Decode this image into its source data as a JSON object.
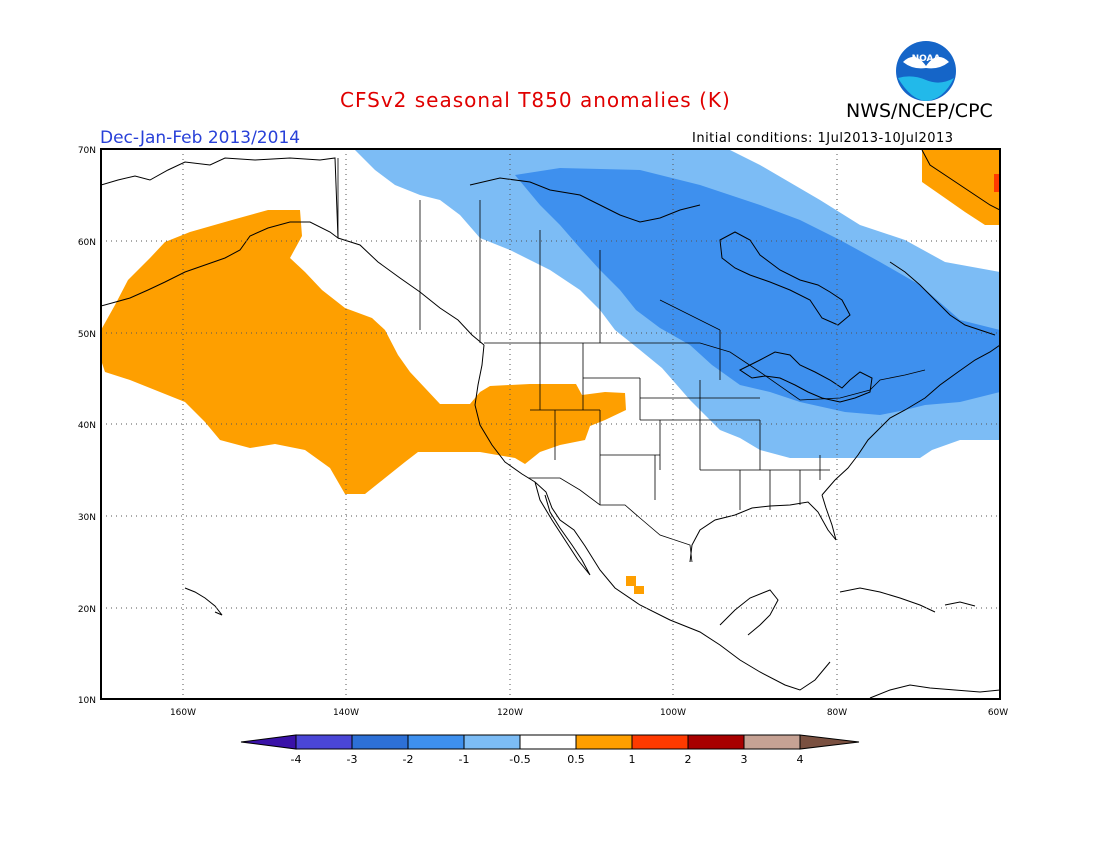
{
  "header": {
    "title": "CFSv2 seasonal T850 anomalies (K)",
    "agency": "NWS/NCEP/CPC",
    "season": "Dec-Jan-Feb 2013/2014",
    "init": "Initial conditions: 1Jul2013-10Jul2013",
    "logo_text": "NOAA"
  },
  "axes": {
    "lat_labels": [
      "70N",
      "60N",
      "50N",
      "40N",
      "30N",
      "20N",
      "10N"
    ],
    "lon_labels": [
      "160W",
      "140W",
      "120W",
      "100W",
      "80W",
      "60W"
    ],
    "lat_range": [
      10,
      70
    ],
    "lon_range": [
      -170,
      -60
    ]
  },
  "colorbar": {
    "labels": [
      "-4",
      "-3",
      "-2",
      "-1",
      "-0.5",
      "0.5",
      "1",
      "2",
      "3",
      "4"
    ],
    "colors": [
      "#3a12a8",
      "#4a46d6",
      "#2d70d6",
      "#3e90ee",
      "#7cbcf5",
      "#ffffff",
      "#fe9f00",
      "#ff3a00",
      "#a80000",
      "#c6a294",
      "#7a5040"
    ]
  },
  "colors": {
    "warm": "#fe9f00",
    "cool_light": "#7cbcf5",
    "cool_mid": "#3e90ee",
    "title_red": "#e00000",
    "season_blue": "#2840d8",
    "noaa_blue": "#1565c8",
    "noaa_cyan": "#22b9ea"
  }
}
